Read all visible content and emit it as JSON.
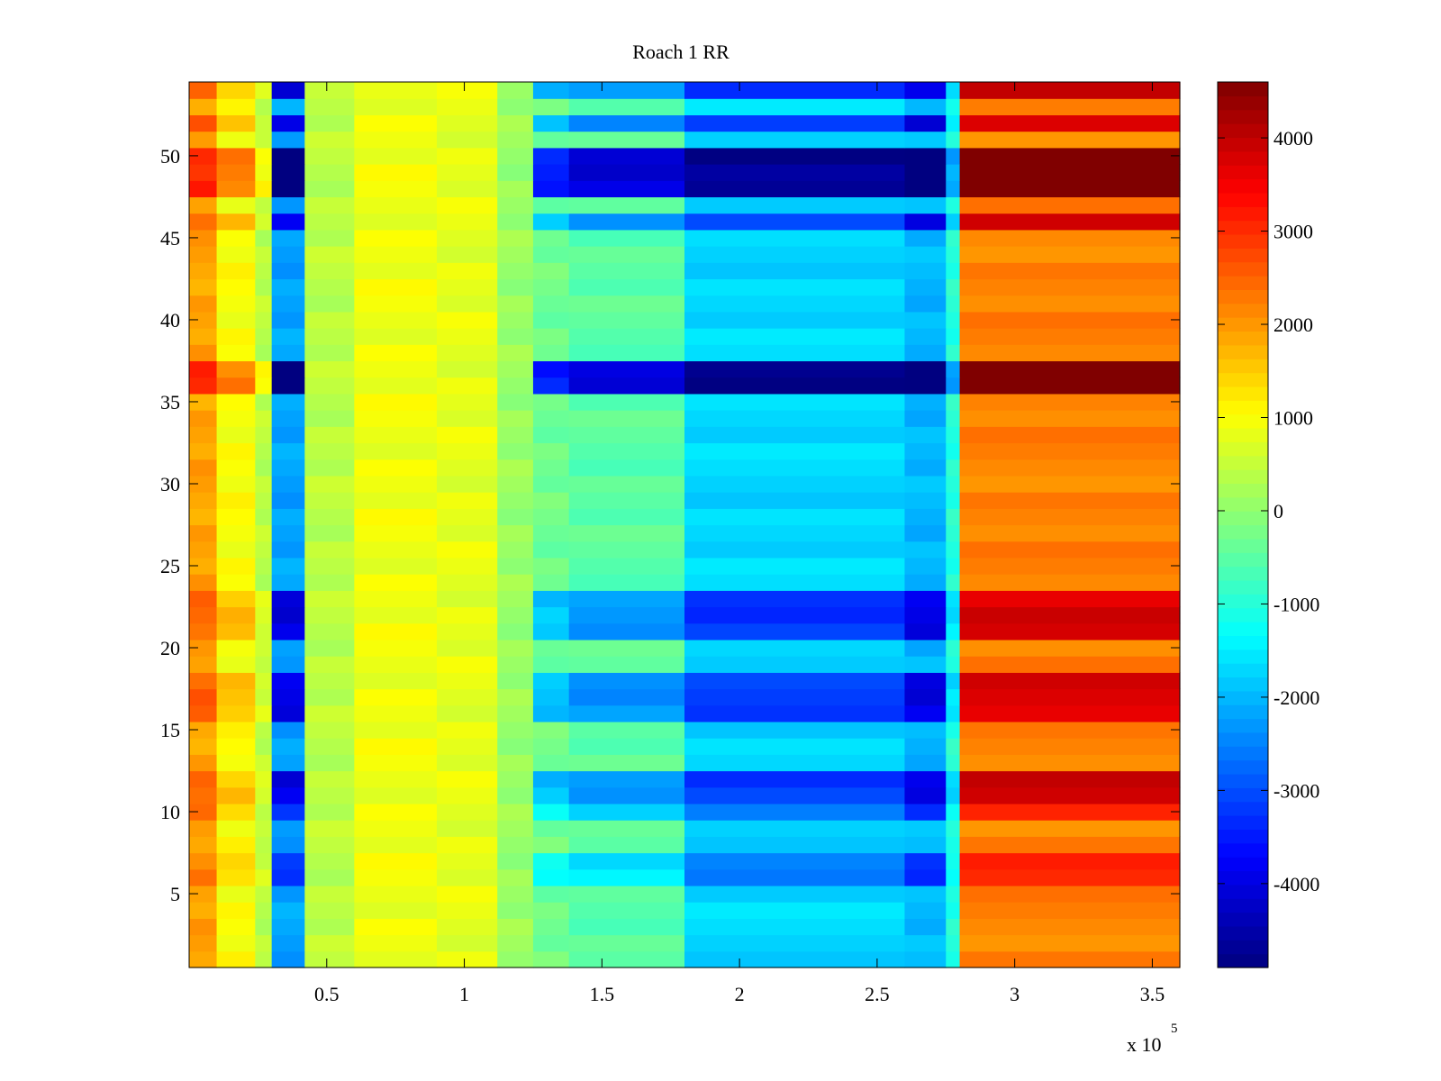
{
  "chart_data": {
    "type": "heatmap",
    "title": "Roach 1 RR",
    "xlabel": "",
    "ylabel": "",
    "x_multiplier_label": "x 10",
    "x_multiplier_exponent": "5",
    "xlim": [
      0,
      360000
    ],
    "ylim": [
      0.5,
      54.5
    ],
    "x_ticks": [
      50000,
      100000,
      150000,
      200000,
      250000,
      300000,
      350000
    ],
    "x_tick_labels": [
      "0.5",
      "1",
      "1.5",
      "2",
      "2.5",
      "3",
      "3.5"
    ],
    "y_ticks": [
      5,
      10,
      15,
      20,
      25,
      30,
      35,
      40,
      45,
      50
    ],
    "y_tick_labels": [
      "5",
      "10",
      "15",
      "20",
      "25",
      "30",
      "35",
      "40",
      "45",
      "50"
    ],
    "colorbar": {
      "colormap": "jet",
      "clim": [
        -4900,
        4600
      ],
      "ticks": [
        -4000,
        -3000,
        -2000,
        -1000,
        0,
        1000,
        2000,
        3000,
        4000
      ],
      "tick_labels": [
        "-4000",
        "-3000",
        "-2000",
        "-1000",
        "0",
        "1000",
        "2000",
        "3000",
        "4000"
      ]
    },
    "rows": 54,
    "x_segments": {
      "edges": [
        0,
        10000,
        24000,
        30000,
        42000,
        60000,
        90000,
        112000,
        125000,
        138000,
        180000,
        260000,
        275000,
        280000,
        360000
      ],
      "base_values": [
        1900,
        1000,
        400,
        -2200,
        400,
        900,
        800,
        100,
        -300,
        -500,
        -1700,
        -2000,
        -1000,
        2200
      ]
    },
    "row_offsets": {
      "rows": [
        46,
        48,
        49,
        50,
        52,
        54,
        36,
        37,
        21,
        22,
        23,
        11,
        12,
        16,
        17,
        18,
        10,
        6,
        7
      ],
      "values": [
        1,
        2,
        2,
        2,
        1,
        1,
        2,
        2,
        1,
        1,
        1,
        1,
        1,
        1,
        1,
        1,
        0.6,
        0.6,
        0.6
      ]
    },
    "row_offset_scale_by_segment": [
      600,
      600,
      300,
      -1800,
      0,
      0,
      0,
      0,
      -1600,
      -1800,
      -1500,
      -2000,
      -600,
      1600
    ]
  }
}
